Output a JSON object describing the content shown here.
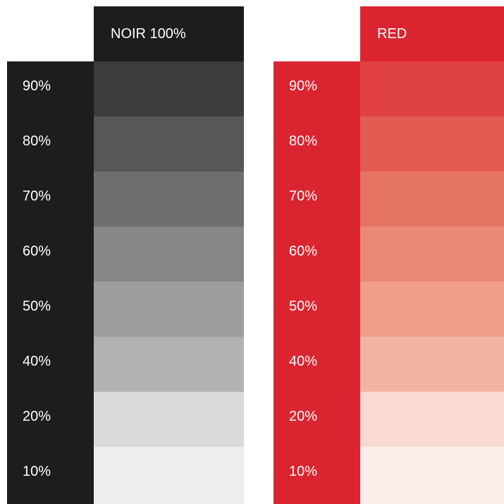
{
  "palettes": [
    {
      "title": "NOIR 100%",
      "base_color": "#1d1d1b",
      "tints": [
        {
          "label": "90%",
          "color": "#3c3c3a"
        },
        {
          "label": "80%",
          "color": "#575756"
        },
        {
          "label": "70%",
          "color": "#6f6f6e"
        },
        {
          "label": "60%",
          "color": "#878787"
        },
        {
          "label": "50%",
          "color": "#9d9d9c"
        },
        {
          "label": "40%",
          "color": "#b2b2b2"
        },
        {
          "label": "20%",
          "color": "#dadada"
        },
        {
          "label": "10%",
          "color": "#ededed"
        }
      ]
    },
    {
      "title": "RED",
      "base_color": "#da2530",
      "tints": [
        {
          "label": "90%",
          "color": "#df4140"
        },
        {
          "label": "80%",
          "color": "#e35c52"
        },
        {
          "label": "70%",
          "color": "#e67462"
        },
        {
          "label": "60%",
          "color": "#ea8a76"
        },
        {
          "label": "50%",
          "color": "#ee9e8b"
        },
        {
          "label": "40%",
          "color": "#f2b3a3"
        },
        {
          "label": "20%",
          "color": "#f9dad1"
        },
        {
          "label": "10%",
          "color": "#fcede8"
        }
      ]
    }
  ]
}
